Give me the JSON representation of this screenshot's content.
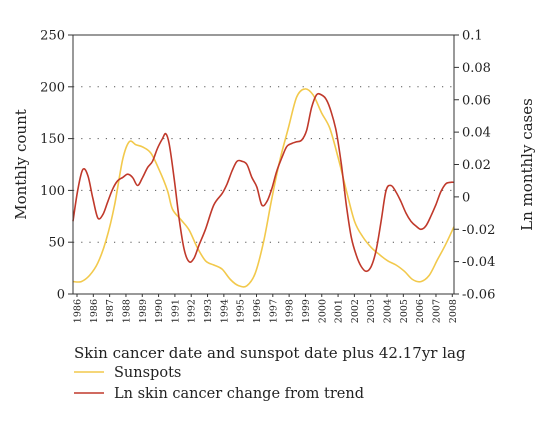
{
  "chart_data": {
    "type": "line",
    "caption": "Skin cancer date and sunspot date plus 42.17yr lag",
    "ylabel_left": "Monthly count",
    "ylabel_right": "Ln monthly cases",
    "ylim_left": [
      0,
      250
    ],
    "ylim_right": [
      -0.06,
      0.1
    ],
    "yticks_left": [
      "0",
      "50",
      "100",
      "150",
      "200",
      "250"
    ],
    "yticks_right": [
      "-0.06",
      "-0.04",
      "-0.02",
      "0",
      "0.02",
      "0.04",
      "0.06",
      "0.08",
      "0.1"
    ],
    "xlim": [
      1986,
      2009
    ],
    "xtick_labels": [
      "1986",
      "1986",
      "1987",
      "1988",
      "1989",
      "1990",
      "1991",
      "1992",
      "1993",
      "1994",
      "1995",
      "1996",
      "1997",
      "1998",
      "1999",
      "2000",
      "2001",
      "2002",
      "2003",
      "2004",
      "2005",
      "2006",
      "2007",
      "2008"
    ],
    "grid": "dotted horizontal at left-axis 50, 100, 150, 200",
    "legend_position": "below",
    "series": [
      {
        "name": "Sunspots",
        "axis": "left",
        "color": "#f2c94c",
        "points": [
          [
            1986.0,
            12
          ],
          [
            1986.5,
            12
          ],
          [
            1987.0,
            18
          ],
          [
            1987.5,
            30
          ],
          [
            1988.0,
            52
          ],
          [
            1988.5,
            85
          ],
          [
            1989.0,
            130
          ],
          [
            1989.4,
            147
          ],
          [
            1989.8,
            144
          ],
          [
            1990.2,
            142
          ],
          [
            1990.7,
            136
          ],
          [
            1991.2,
            120
          ],
          [
            1991.7,
            100
          ],
          [
            1992.0,
            82
          ],
          [
            1992.5,
            72
          ],
          [
            1993.0,
            62
          ],
          [
            1993.5,
            45
          ],
          [
            1994.0,
            32
          ],
          [
            1994.5,
            28
          ],
          [
            1995.0,
            24
          ],
          [
            1995.5,
            14
          ],
          [
            1996.0,
            8
          ],
          [
            1996.5,
            8
          ],
          [
            1997.0,
            20
          ],
          [
            1997.5,
            50
          ],
          [
            1998.0,
            92
          ],
          [
            1998.5,
            130
          ],
          [
            1999.0,
            160
          ],
          [
            1999.5,
            190
          ],
          [
            2000.0,
            198
          ],
          [
            2000.5,
            192
          ],
          [
            2001.0,
            175
          ],
          [
            2001.5,
            160
          ],
          [
            2002.0,
            132
          ],
          [
            2002.5,
            100
          ],
          [
            2003.0,
            70
          ],
          [
            2003.5,
            55
          ],
          [
            2004.0,
            45
          ],
          [
            2004.5,
            38
          ],
          [
            2005.0,
            32
          ],
          [
            2005.5,
            28
          ],
          [
            2006.0,
            22
          ],
          [
            2006.5,
            14
          ],
          [
            2007.0,
            12
          ],
          [
            2007.5,
            18
          ],
          [
            2008.0,
            33
          ],
          [
            2008.5,
            48
          ],
          [
            2009.0,
            65
          ]
        ]
      },
      {
        "name": "Ln skin cancer change from trend",
        "axis": "right",
        "color": "#c0392b",
        "points": [
          [
            1986.0,
            -0.015
          ],
          [
            1986.3,
            0.005
          ],
          [
            1986.6,
            0.017
          ],
          [
            1986.9,
            0.013
          ],
          [
            1987.2,
            -0.001
          ],
          [
            1987.5,
            -0.013
          ],
          [
            1987.8,
            -0.011
          ],
          [
            1988.1,
            -0.003
          ],
          [
            1988.4,
            0.005
          ],
          [
            1988.7,
            0.01
          ],
          [
            1989.0,
            0.012
          ],
          [
            1989.3,
            0.014
          ],
          [
            1989.6,
            0.012
          ],
          [
            1989.9,
            0.007
          ],
          [
            1990.2,
            0.012
          ],
          [
            1990.5,
            0.018
          ],
          [
            1990.8,
            0.022
          ],
          [
            1991.1,
            0.03
          ],
          [
            1991.4,
            0.036
          ],
          [
            1991.6,
            0.039
          ],
          [
            1991.8,
            0.033
          ],
          [
            1992.1,
            0.012
          ],
          [
            1992.4,
            -0.013
          ],
          [
            1992.7,
            -0.032
          ],
          [
            1993.0,
            -0.04
          ],
          [
            1993.3,
            -0.038
          ],
          [
            1993.6,
            -0.03
          ],
          [
            1994.0,
            -0.02
          ],
          [
            1994.5,
            -0.005
          ],
          [
            1995.0,
            0.002
          ],
          [
            1995.3,
            0.008
          ],
          [
            1995.6,
            0.016
          ],
          [
            1995.9,
            0.022
          ],
          [
            1996.2,
            0.022
          ],
          [
            1996.5,
            0.02
          ],
          [
            1996.8,
            0.012
          ],
          [
            1997.1,
            0.006
          ],
          [
            1997.4,
            -0.005
          ],
          [
            1997.7,
            -0.003
          ],
          [
            1998.0,
            0.005
          ],
          [
            1998.3,
            0.016
          ],
          [
            1998.6,
            0.024
          ],
          [
            1998.9,
            0.031
          ],
          [
            1999.2,
            0.033
          ],
          [
            1999.5,
            0.034
          ],
          [
            1999.8,
            0.035
          ],
          [
            2000.1,
            0.041
          ],
          [
            2000.4,
            0.055
          ],
          [
            2000.7,
            0.063
          ],
          [
            2001.0,
            0.063
          ],
          [
            2001.3,
            0.06
          ],
          [
            2001.6,
            0.052
          ],
          [
            2001.9,
            0.04
          ],
          [
            2002.2,
            0.02
          ],
          [
            2002.5,
            -0.005
          ],
          [
            2002.8,
            -0.025
          ],
          [
            2003.1,
            -0.036
          ],
          [
            2003.4,
            -0.043
          ],
          [
            2003.7,
            -0.046
          ],
          [
            2004.0,
            -0.043
          ],
          [
            2004.3,
            -0.033
          ],
          [
            2004.6,
            -0.015
          ],
          [
            2004.9,
            0.004
          ],
          [
            2005.2,
            0.007
          ],
          [
            2005.5,
            0.003
          ],
          [
            2005.8,
            -0.003
          ],
          [
            2006.1,
            -0.01
          ],
          [
            2006.4,
            -0.015
          ],
          [
            2006.7,
            -0.018
          ],
          [
            2007.0,
            -0.02
          ],
          [
            2007.3,
            -0.018
          ],
          [
            2007.6,
            -0.012
          ],
          [
            2007.9,
            -0.005
          ],
          [
            2008.2,
            0.003
          ],
          [
            2008.5,
            0.008
          ],
          [
            2008.8,
            0.009
          ],
          [
            2009.0,
            0.009
          ]
        ]
      }
    ]
  }
}
